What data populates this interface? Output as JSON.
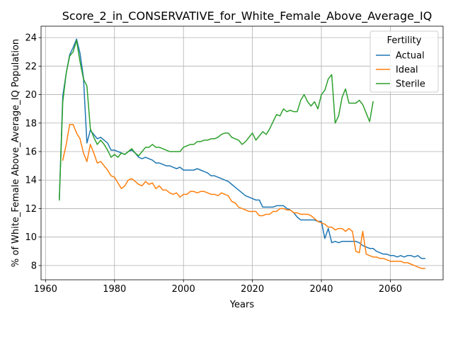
{
  "chart_data": {
    "type": "line",
    "title": "Score_2_in_CONSERVATIVE_for_White_Female_Above_Average_IQ",
    "xlabel": "Years",
    "ylabel": "% of White_Female Above_Average_IQ Population",
    "xlim": [
      1958.7,
      2075.3
    ],
    "ylim": [
      7.0,
      24.8
    ],
    "xticks": [
      1960,
      1980,
      2000,
      2020,
      2040,
      2060
    ],
    "yticks": [
      8,
      10,
      12,
      14,
      16,
      18,
      20,
      22,
      24
    ],
    "grid": true,
    "legend": {
      "title": "Fertility",
      "position": "top-right"
    },
    "series": [
      {
        "name": "Actual",
        "color": "#1f77b4",
        "points": [
          [
            1964,
            12.7
          ],
          [
            1965,
            19.9
          ],
          [
            1966,
            21.5
          ],
          [
            1967,
            22.8
          ],
          [
            1968,
            23.3
          ],
          [
            1969,
            23.9
          ],
          [
            1970,
            22.9
          ],
          [
            1971,
            21.2
          ],
          [
            1972,
            16.6
          ],
          [
            1973,
            17.5
          ],
          [
            1974,
            17.2
          ],
          [
            1975,
            16.9
          ],
          [
            1976,
            17.0
          ],
          [
            1977,
            16.8
          ],
          [
            1978,
            16.6
          ],
          [
            1979,
            16.1
          ],
          [
            1980,
            16.1
          ],
          [
            1981,
            16.0
          ],
          [
            1982,
            15.9
          ],
          [
            1983,
            15.8
          ],
          [
            1984,
            16.0
          ],
          [
            1985,
            16.1
          ],
          [
            1986,
            15.9
          ],
          [
            1987,
            15.6
          ],
          [
            1988,
            15.5
          ],
          [
            1989,
            15.6
          ],
          [
            1990,
            15.5
          ],
          [
            1991,
            15.4
          ],
          [
            1992,
            15.2
          ],
          [
            1993,
            15.2
          ],
          [
            1994,
            15.1
          ],
          [
            1995,
            15.0
          ],
          [
            1996,
            15.0
          ],
          [
            1997,
            14.9
          ],
          [
            1998,
            14.8
          ],
          [
            1999,
            14.9
          ],
          [
            2000,
            14.7
          ],
          [
            2001,
            14.7
          ],
          [
            2002,
            14.7
          ],
          [
            2003,
            14.7
          ],
          [
            2004,
            14.8
          ],
          [
            2005,
            14.7
          ],
          [
            2006,
            14.6
          ],
          [
            2007,
            14.5
          ],
          [
            2008,
            14.3
          ],
          [
            2009,
            14.3
          ],
          [
            2010,
            14.2
          ],
          [
            2011,
            14.1
          ],
          [
            2012,
            14.0
          ],
          [
            2013,
            13.9
          ],
          [
            2014,
            13.7
          ],
          [
            2015,
            13.5
          ],
          [
            2016,
            13.3
          ],
          [
            2017,
            13.1
          ],
          [
            2018,
            12.9
          ],
          [
            2019,
            12.8
          ],
          [
            2020,
            12.7
          ],
          [
            2021,
            12.6
          ],
          [
            2022,
            12.6
          ],
          [
            2023,
            12.1
          ],
          [
            2024,
            12.1
          ],
          [
            2025,
            12.1
          ],
          [
            2026,
            12.1
          ],
          [
            2027,
            12.2
          ],
          [
            2028,
            12.2
          ],
          [
            2029,
            12.2
          ],
          [
            2030,
            12.0
          ],
          [
            2031,
            11.9
          ],
          [
            2032,
            11.7
          ],
          [
            2033,
            11.4
          ],
          [
            2034,
            11.2
          ],
          [
            2035,
            11.2
          ],
          [
            2036,
            11.2
          ],
          [
            2037,
            11.2
          ],
          [
            2038,
            11.2
          ],
          [
            2039,
            11.1
          ],
          [
            2040,
            11.1
          ],
          [
            2041,
            9.9
          ],
          [
            2042,
            10.6
          ],
          [
            2043,
            9.6
          ],
          [
            2044,
            9.7
          ],
          [
            2045,
            9.6
          ],
          [
            2046,
            9.7
          ],
          [
            2047,
            9.7
          ],
          [
            2048,
            9.7
          ],
          [
            2049,
            9.7
          ],
          [
            2050,
            9.7
          ],
          [
            2051,
            9.6
          ],
          [
            2052,
            9.4
          ],
          [
            2053,
            9.3
          ],
          [
            2054,
            9.2
          ],
          [
            2055,
            9.2
          ],
          [
            2056,
            9.0
          ],
          [
            2057,
            8.9
          ],
          [
            2058,
            8.8
          ],
          [
            2059,
            8.8
          ],
          [
            2060,
            8.7
          ],
          [
            2061,
            8.7
          ],
          [
            2062,
            8.6
          ],
          [
            2063,
            8.7
          ],
          [
            2064,
            8.6
          ],
          [
            2065,
            8.7
          ],
          [
            2066,
            8.7
          ],
          [
            2067,
            8.6
          ],
          [
            2068,
            8.7
          ],
          [
            2069,
            8.5
          ],
          [
            2070,
            8.5
          ]
        ]
      },
      {
        "name": "Ideal",
        "color": "#ff7f0e",
        "points": [
          [
            1965,
            15.4
          ],
          [
            1966,
            16.5
          ],
          [
            1967,
            17.9
          ],
          [
            1968,
            17.9
          ],
          [
            1969,
            17.3
          ],
          [
            1970,
            16.9
          ],
          [
            1971,
            15.9
          ],
          [
            1972,
            15.3
          ],
          [
            1973,
            16.5
          ],
          [
            1974,
            15.9
          ],
          [
            1975,
            15.2
          ],
          [
            1976,
            15.3
          ],
          [
            1977,
            15.0
          ],
          [
            1978,
            14.7
          ],
          [
            1979,
            14.3
          ],
          [
            1980,
            14.2
          ],
          [
            1981,
            13.8
          ],
          [
            1982,
            13.4
          ],
          [
            1983,
            13.6
          ],
          [
            1984,
            14.0
          ],
          [
            1985,
            14.1
          ],
          [
            1986,
            13.9
          ],
          [
            1987,
            13.7
          ],
          [
            1988,
            13.6
          ],
          [
            1989,
            13.9
          ],
          [
            1990,
            13.7
          ],
          [
            1991,
            13.8
          ],
          [
            1992,
            13.4
          ],
          [
            1993,
            13.6
          ],
          [
            1994,
            13.3
          ],
          [
            1995,
            13.3
          ],
          [
            1996,
            13.1
          ],
          [
            1997,
            13.0
          ],
          [
            1998,
            13.1
          ],
          [
            1999,
            12.8
          ],
          [
            2000,
            13.0
          ],
          [
            2001,
            13.0
          ],
          [
            2002,
            13.2
          ],
          [
            2003,
            13.2
          ],
          [
            2004,
            13.1
          ],
          [
            2005,
            13.2
          ],
          [
            2006,
            13.2
          ],
          [
            2007,
            13.1
          ],
          [
            2008,
            13.0
          ],
          [
            2009,
            13.0
          ],
          [
            2010,
            12.9
          ],
          [
            2011,
            13.1
          ],
          [
            2012,
            13.0
          ],
          [
            2013,
            12.9
          ],
          [
            2014,
            12.5
          ],
          [
            2015,
            12.4
          ],
          [
            2016,
            12.1
          ],
          [
            2017,
            12.0
          ],
          [
            2018,
            11.9
          ],
          [
            2019,
            11.8
          ],
          [
            2020,
            11.8
          ],
          [
            2021,
            11.8
          ],
          [
            2022,
            11.5
          ],
          [
            2023,
            11.5
          ],
          [
            2024,
            11.6
          ],
          [
            2025,
            11.6
          ],
          [
            2026,
            11.8
          ],
          [
            2027,
            11.8
          ],
          [
            2028,
            12.0
          ],
          [
            2029,
            12.0
          ],
          [
            2030,
            11.9
          ],
          [
            2031,
            11.9
          ],
          [
            2032,
            11.7
          ],
          [
            2033,
            11.7
          ],
          [
            2034,
            11.6
          ],
          [
            2035,
            11.6
          ],
          [
            2036,
            11.6
          ],
          [
            2037,
            11.5
          ],
          [
            2038,
            11.3
          ],
          [
            2039,
            11.1
          ],
          [
            2040,
            11.0
          ],
          [
            2041,
            10.9
          ],
          [
            2042,
            10.7
          ],
          [
            2043,
            10.7
          ],
          [
            2044,
            10.5
          ],
          [
            2045,
            10.6
          ],
          [
            2046,
            10.6
          ],
          [
            2047,
            10.4
          ],
          [
            2048,
            10.6
          ],
          [
            2049,
            10.4
          ],
          [
            2050,
            9.0
          ],
          [
            2051,
            8.9
          ],
          [
            2052,
            10.4
          ],
          [
            2053,
            8.8
          ],
          [
            2054,
            8.7
          ],
          [
            2055,
            8.6
          ],
          [
            2056,
            8.6
          ],
          [
            2057,
            8.5
          ],
          [
            2058,
            8.5
          ],
          [
            2059,
            8.4
          ],
          [
            2060,
            8.3
          ],
          [
            2061,
            8.3
          ],
          [
            2062,
            8.3
          ],
          [
            2063,
            8.3
          ],
          [
            2064,
            8.2
          ],
          [
            2065,
            8.2
          ],
          [
            2066,
            8.1
          ],
          [
            2067,
            8.0
          ],
          [
            2068,
            7.9
          ],
          [
            2069,
            7.8
          ],
          [
            2070,
            7.8
          ]
        ]
      },
      {
        "name": "Sterile",
        "color": "#2ca02c",
        "points": [
          [
            1964,
            12.6
          ],
          [
            1965,
            19.5
          ],
          [
            1966,
            21.5
          ],
          [
            1967,
            22.7
          ],
          [
            1968,
            23.0
          ],
          [
            1969,
            23.8
          ],
          [
            1970,
            22.3
          ],
          [
            1971,
            21.1
          ],
          [
            1972,
            20.6
          ],
          [
            1973,
            17.6
          ],
          [
            1974,
            17.0
          ],
          [
            1975,
            16.5
          ],
          [
            1976,
            16.8
          ],
          [
            1977,
            16.5
          ],
          [
            1978,
            16.1
          ],
          [
            1979,
            15.6
          ],
          [
            1980,
            15.8
          ],
          [
            1981,
            15.6
          ],
          [
            1982,
            15.9
          ],
          [
            1983,
            15.8
          ],
          [
            1984,
            16.0
          ],
          [
            1985,
            16.2
          ],
          [
            1986,
            15.9
          ],
          [
            1987,
            15.7
          ],
          [
            1988,
            16.0
          ],
          [
            1989,
            16.3
          ],
          [
            1990,
            16.3
          ],
          [
            1991,
            16.5
          ],
          [
            1992,
            16.3
          ],
          [
            1993,
            16.3
          ],
          [
            1994,
            16.2
          ],
          [
            1995,
            16.1
          ],
          [
            1996,
            16.0
          ],
          [
            1997,
            16.0
          ],
          [
            1998,
            16.0
          ],
          [
            1999,
            16.0
          ],
          [
            2000,
            16.3
          ],
          [
            2001,
            16.4
          ],
          [
            2002,
            16.5
          ],
          [
            2003,
            16.5
          ],
          [
            2004,
            16.7
          ],
          [
            2005,
            16.7
          ],
          [
            2006,
            16.8
          ],
          [
            2007,
            16.8
          ],
          [
            2008,
            16.9
          ],
          [
            2009,
            16.9
          ],
          [
            2010,
            17.0
          ],
          [
            2011,
            17.2
          ],
          [
            2012,
            17.3
          ],
          [
            2013,
            17.3
          ],
          [
            2014,
            17.0
          ],
          [
            2015,
            16.9
          ],
          [
            2016,
            16.8
          ],
          [
            2017,
            16.5
          ],
          [
            2018,
            16.7
          ],
          [
            2019,
            17.0
          ],
          [
            2020,
            17.3
          ],
          [
            2021,
            16.8
          ],
          [
            2022,
            17.1
          ],
          [
            2023,
            17.4
          ],
          [
            2024,
            17.2
          ],
          [
            2025,
            17.6
          ],
          [
            2026,
            18.1
          ],
          [
            2027,
            18.6
          ],
          [
            2028,
            18.5
          ],
          [
            2029,
            19.0
          ],
          [
            2030,
            18.8
          ],
          [
            2031,
            18.9
          ],
          [
            2032,
            18.8
          ],
          [
            2033,
            18.8
          ],
          [
            2034,
            19.6
          ],
          [
            2035,
            20.0
          ],
          [
            2036,
            19.5
          ],
          [
            2037,
            19.2
          ],
          [
            2038,
            19.5
          ],
          [
            2039,
            19.0
          ],
          [
            2040,
            20.0
          ],
          [
            2041,
            20.3
          ],
          [
            2042,
            21.1
          ],
          [
            2043,
            21.4
          ],
          [
            2044,
            18.0
          ],
          [
            2045,
            18.5
          ],
          [
            2046,
            19.8
          ],
          [
            2047,
            20.4
          ],
          [
            2048,
            19.4
          ],
          [
            2049,
            19.4
          ],
          [
            2050,
            19.4
          ],
          [
            2051,
            19.6
          ],
          [
            2052,
            19.3
          ],
          [
            2053,
            18.7
          ],
          [
            2054,
            18.1
          ],
          [
            2055,
            19.5
          ]
        ]
      }
    ]
  }
}
